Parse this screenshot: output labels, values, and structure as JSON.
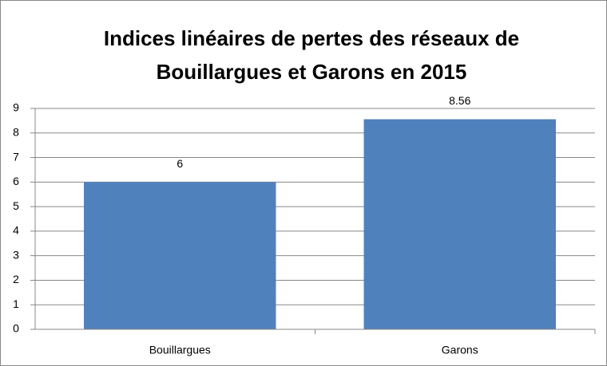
{
  "chart_data": {
    "type": "bar",
    "title": [
      "Indices linéaires de pertes des réseaux de",
      "Bouillargues et Garons en 2015"
    ],
    "categories": [
      "Bouillargues",
      "Garons"
    ],
    "values": [
      6,
      8.56
    ],
    "color": "#4f81bd",
    "ylim": [
      0,
      9
    ],
    "yticks": [
      0,
      1,
      2,
      3,
      4,
      5,
      6,
      7,
      8,
      9
    ],
    "grid": true
  }
}
